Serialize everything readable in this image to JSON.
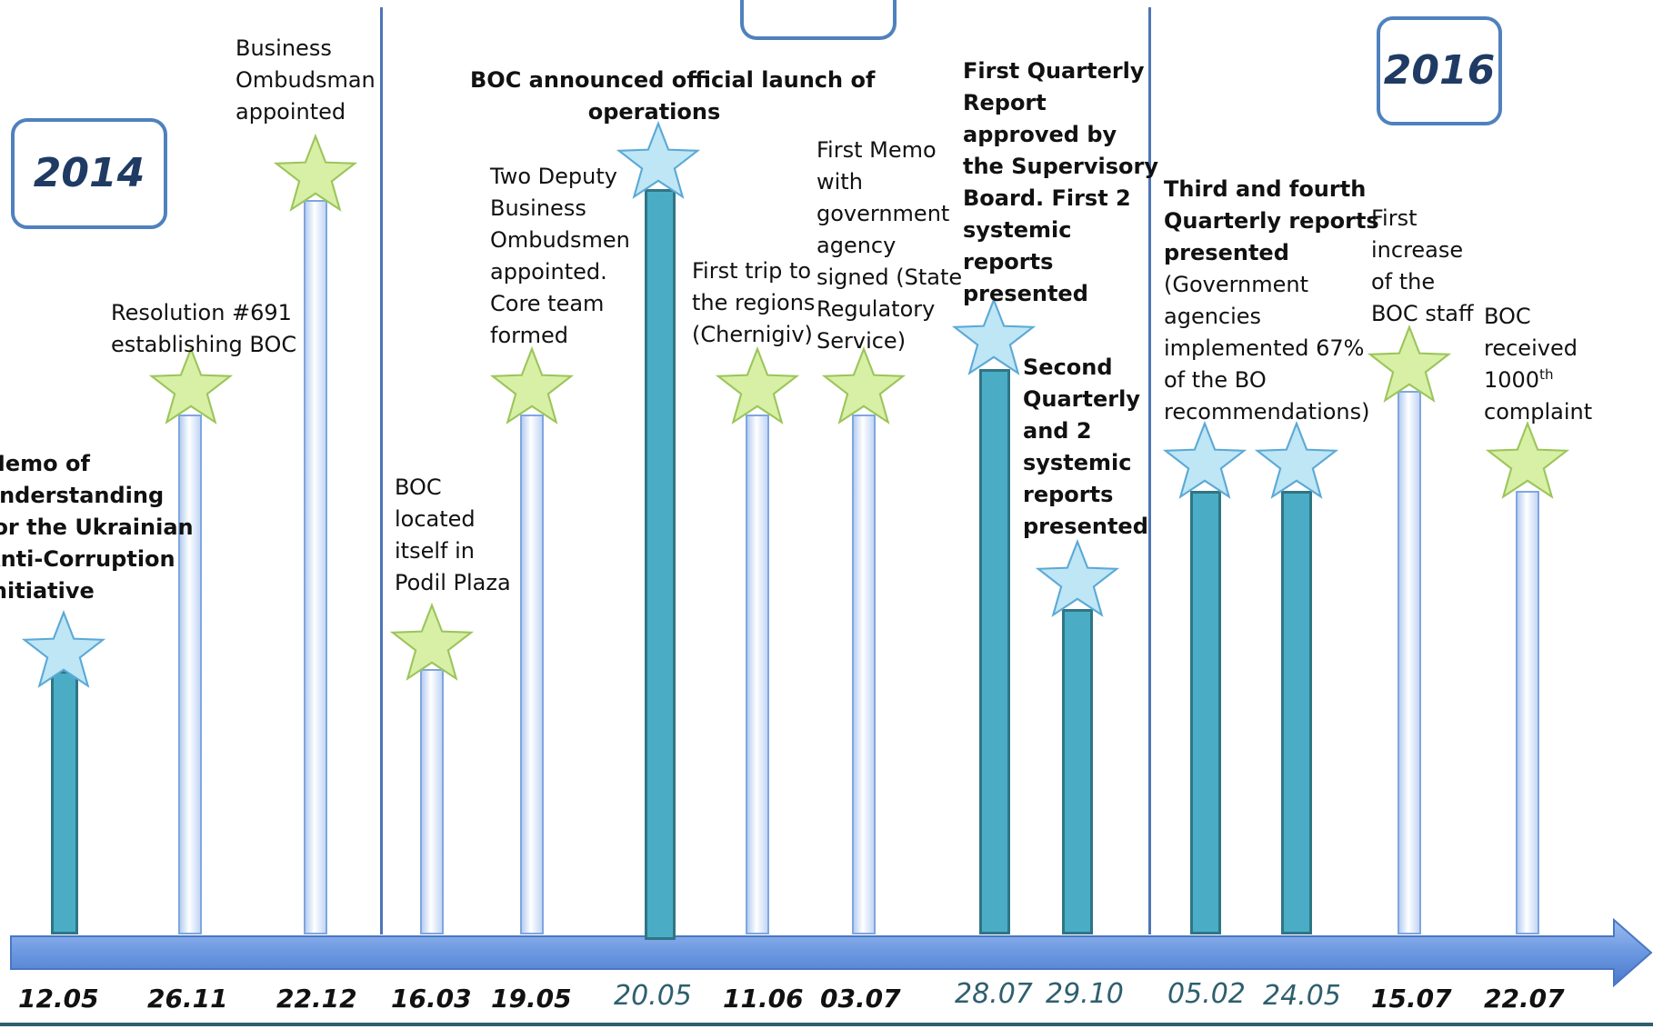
{
  "years": {
    "y2014": "2014",
    "y2016": "2016"
  },
  "events": {
    "e1": [
      "Memo of",
      "understanding",
      "for the Ukrainian",
      "Anti-Corruption",
      "Initiative"
    ],
    "e2": [
      "Resolution #691",
      "establishing BOC"
    ],
    "e3": [
      "Business",
      "Ombudsman",
      "appointed"
    ],
    "e4": [
      "BOC",
      "located",
      "itself in",
      "Podil Plaza"
    ],
    "e5": [
      "Two Deputy",
      "Business",
      "Ombudsmen",
      "appointed.",
      "Core team",
      "formed"
    ],
    "e6": [
      "BOC announced official launch of",
      "operations"
    ],
    "e7": [
      "First trip to",
      "the regions",
      "(Chernigiv)"
    ],
    "e8": [
      "First Memo",
      "with",
      "government",
      "agency",
      "signed (State",
      "Regulatory",
      "Service)"
    ],
    "e9": [
      "First Quarterly",
      "Report",
      "approved by",
      "the Supervisory",
      "Board. First 2",
      "systemic",
      "reports",
      "presented"
    ],
    "e10": [
      "Second",
      "Quarterly",
      "and 2",
      "systemic",
      "reports",
      "presented"
    ],
    "e11_bold": [
      "Third and fourth",
      "Quarterly reports",
      "presented"
    ],
    "e11": [
      "(Government",
      "agencies",
      "implemented 67%",
      "of the BO",
      "recommendations)"
    ],
    "e12": [
      "First",
      "increase",
      "of the",
      "BOC staff"
    ],
    "e13": {
      "l1": "BOC",
      "l2": "received",
      "l3_num": "1000",
      "l3_sup": "th",
      "l4": "complaint"
    }
  },
  "dates": [
    "12.05",
    "26.11",
    "22.12",
    "16.03",
    "19.05",
    "20.05",
    "11.06",
    "03.07",
    "28.07",
    "29.10",
    "05.02",
    "24.05",
    "15.07",
    "22.07"
  ],
  "colors": {
    "axis": "#5b8ad6",
    "pole_dark": "#4bacc6",
    "pole_light": "#c6d9f5",
    "star_green": "#d7f0a6",
    "star_blue": "#bfe6f5",
    "year_border": "#4f81bd",
    "date_blue": "#2e5f6e"
  },
  "icons": {
    "star_green": "star-icon",
    "star_blue": "star-icon",
    "arrow": "arrow-head-icon"
  }
}
